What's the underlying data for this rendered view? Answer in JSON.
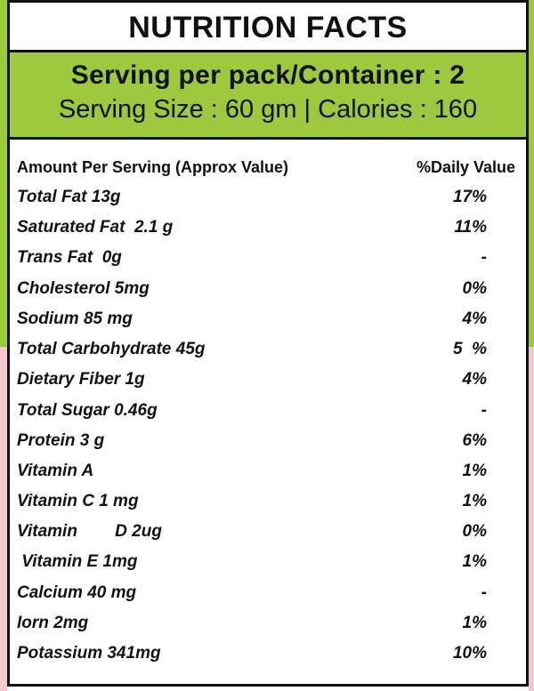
{
  "header": {
    "title": "NUTRITION FACTS"
  },
  "serving": {
    "per_pack": "Serving per pack/Container : 2",
    "size_calories": "Serving Size : 60 gm | Calories : 160"
  },
  "table": {
    "col_amount": "Amount Per Serving (Approx Value)",
    "col_daily": "%Daily Value",
    "rows": [
      {
        "name": "Total Fat 13g",
        "dv": "17%"
      },
      {
        "name": "Saturated Fat  2.1 g",
        "dv": "11%"
      },
      {
        "name": "Trans Fat  0g",
        "dv": "-"
      },
      {
        "name": "Cholesterol 5mg",
        "dv": "0%"
      },
      {
        "name": "Sodium 85 mg",
        "dv": "4%"
      },
      {
        "name": "Total Carbohydrate 45g",
        "dv": "5  %"
      },
      {
        "name": "Dietary Fiber 1g",
        "dv": "4%"
      },
      {
        "name": "Total Sugar 0.46g",
        "dv": "-"
      },
      {
        "name": "Protein 3 g",
        "dv": "6%"
      },
      {
        "name": "Vitamin A",
        "dv": "1%"
      },
      {
        "name": "Vitamin C 1 mg",
        "dv": "1%"
      },
      {
        "name": "Vitamin        D 2ug",
        "dv": "0%"
      },
      {
        "name": " Vitamin E 1mg",
        "dv": "1%"
      },
      {
        "name": "Calcium 40 mg",
        "dv": "-"
      },
      {
        "name": "Iorn 2mg",
        "dv": "1%"
      },
      {
        "name": "Potassium 341mg",
        "dv": "10%"
      }
    ]
  },
  "colors": {
    "accent_green": "#9cc93d",
    "accent_pink": "#f3c7cf",
    "border": "#111111"
  }
}
